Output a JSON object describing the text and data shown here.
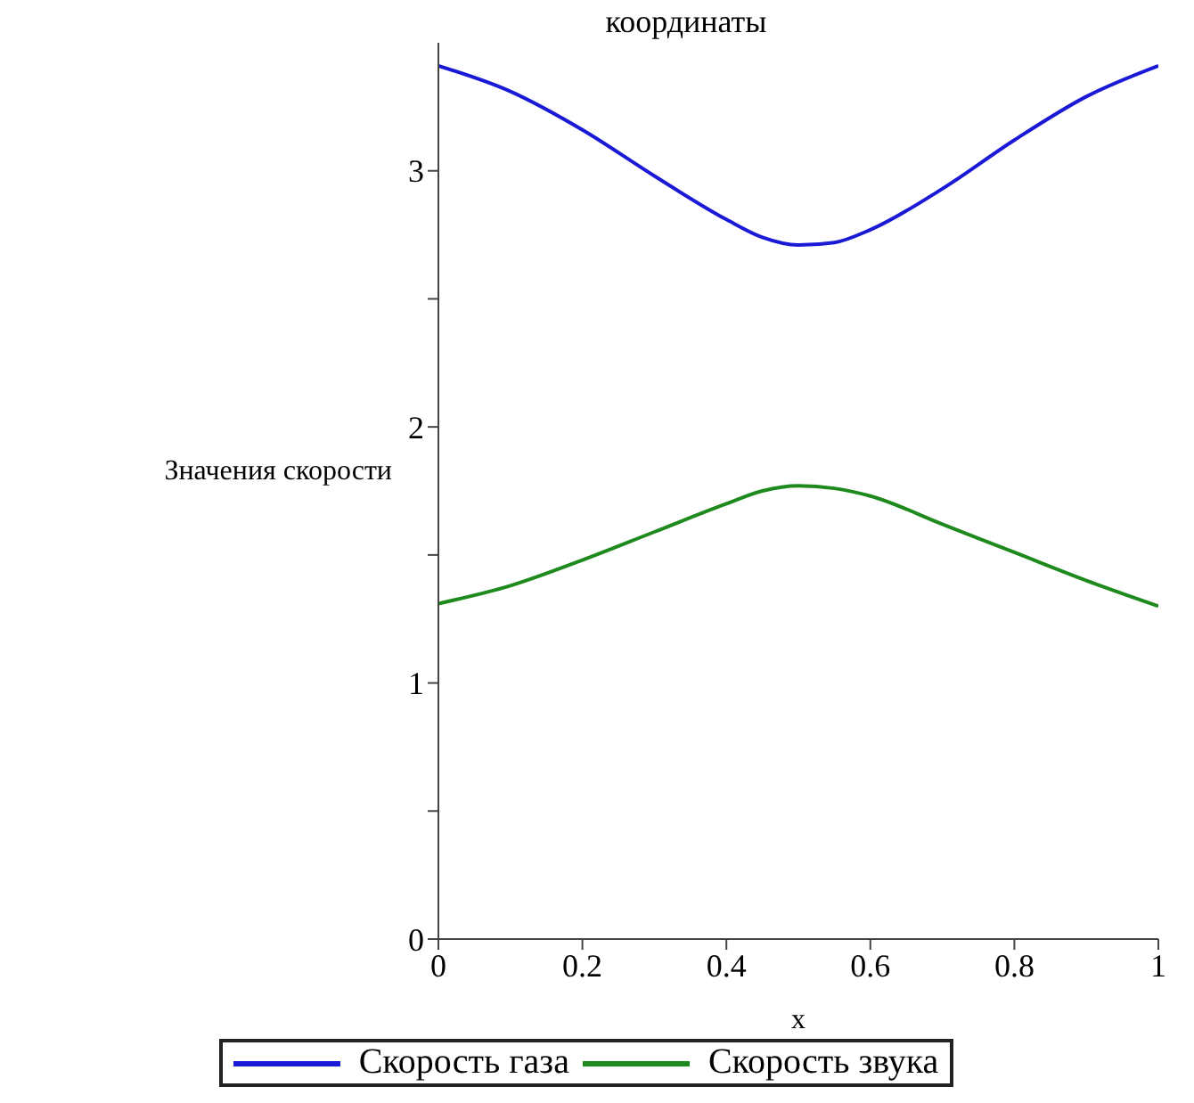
{
  "chart_data": {
    "type": "line",
    "title": "координаты",
    "xlabel": "x",
    "ylabel": "Значения скорости",
    "x": [
      0,
      0.1,
      0.2,
      0.3,
      0.4,
      0.45,
      0.5,
      0.55,
      0.6,
      0.7,
      0.8,
      0.9,
      1
    ],
    "series": [
      {
        "name": "Скорость газа",
        "color": "#1a1ad6",
        "values": [
          3.41,
          3.31,
          3.16,
          2.98,
          2.81,
          2.74,
          2.71,
          2.72,
          2.77,
          2.93,
          3.12,
          3.29,
          3.41
        ]
      },
      {
        "name": "Скорость звука",
        "color": "#1e8a1e",
        "values": [
          1.31,
          1.38,
          1.48,
          1.59,
          1.7,
          1.75,
          1.77,
          1.76,
          1.73,
          1.62,
          1.51,
          1.4,
          1.3
        ]
      }
    ],
    "xlim": [
      0,
      1
    ],
    "xticks": [
      0,
      0.2,
      0.4,
      0.6,
      0.8,
      1
    ],
    "ylim": [
      0,
      3.5
    ],
    "yticks": [
      0,
      {
        "value": 0.5,
        "label": null
      },
      1,
      {
        "value": 1.5,
        "label": null
      },
      2,
      {
        "value": 2.5,
        "label": null
      },
      3
    ],
    "legend": "bottom",
    "marker": "none",
    "line_style": "solid"
  }
}
